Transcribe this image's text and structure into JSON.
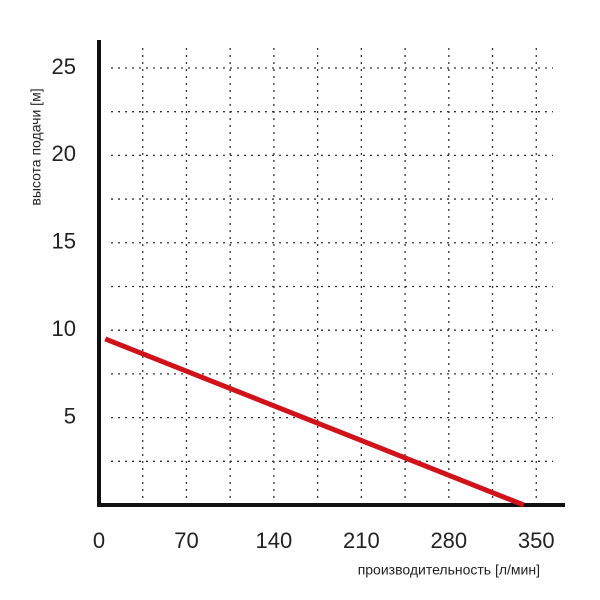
{
  "chart_data": {
    "type": "line",
    "x_label": "производительность [л/мин]",
    "y_label": "высота подачи [м]",
    "x": [
      5,
      340
    ],
    "series": [
      {
        "values": [
          9.5,
          0
        ],
        "color": "#d0121b"
      }
    ],
    "xlim": [
      0,
      373
    ],
    "ylim": [
      0,
      26.6
    ],
    "xticks": [
      0,
      70,
      140,
      210,
      280,
      350
    ],
    "yticks": [
      5,
      10,
      15,
      20,
      25
    ],
    "minor_xticks": [
      35,
      105,
      175,
      245,
      315
    ],
    "minor_yticks": [
      2.5,
      7.5,
      12.5,
      17.5,
      22.5
    ],
    "grid": true
  }
}
